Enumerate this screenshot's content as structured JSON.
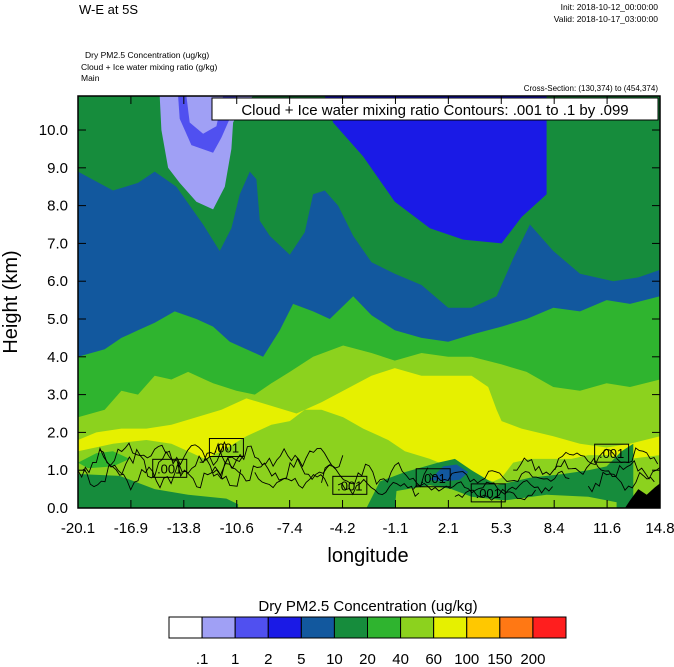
{
  "header": {
    "title": "W-E at 5S",
    "init": "Init: 2018-10-12_00:00:00",
    "valid": "Valid: 2018-10-17_03:00:00",
    "fields": [
      "Dry PM2.5 Concentration   (ug/kg)",
      "Cloud + Ice water mixing ratio   (g/kg)",
      "Main"
    ],
    "cross_section": "Cross-Section: (130,374) to (454,374)"
  },
  "chart_data": {
    "type": "heatmap",
    "title": "W-E at 5S",
    "xlabel": "longitude",
    "ylabel": "Height (km)",
    "x_ticks": [
      "-20.1",
      "-16.9",
      "-13.8",
      "-10.6",
      "-7.4",
      "-4.2",
      "-1.1",
      "2.1",
      "5.3",
      "8.4",
      "11.6",
      "14.8"
    ],
    "y_ticks": [
      "0.0",
      "1.0",
      "2.0",
      "3.0",
      "4.0",
      "5.0",
      "6.0",
      "7.0",
      "8.0",
      "9.0",
      "10.0"
    ],
    "xlim": [
      -20.1,
      14.8
    ],
    "ylim": [
      0.0,
      10.9
    ],
    "contour_label": "Cloud + Ice water mixing ratio Contours: .001 to .1 by .099",
    "contour_levels": [
      0.001,
      0.1
    ],
    "contour_tags": [
      {
        "text": ".001",
        "x": -14.6,
        "y": 1.05
      },
      {
        "text": ".001",
        "x": -11.2,
        "y": 1.6
      },
      {
        "text": ".001",
        "x": -3.8,
        "y": 0.6
      },
      {
        "text": ".001",
        "x": 1.2,
        "y": 0.8
      },
      {
        "text": ".001",
        "x": 4.5,
        "y": 0.4
      },
      {
        "text": ".001",
        "x": 11.9,
        "y": 1.45
      }
    ],
    "colorbar": {
      "title": "Dry PM2.5 Concentration  (ug/kg)",
      "labels": [
        ".1",
        "1",
        "2",
        "5",
        "10",
        "20",
        "40",
        "60",
        "100",
        "150",
        "200"
      ],
      "colors": [
        "#ffffff",
        "#a0a0f5",
        "#5050f0",
        "#1a1ae6",
        "#12589e",
        "#168c3c",
        "#2fb42f",
        "#8cd21e",
        "#e6f000",
        "#ffc800",
        "#ff7814",
        "#ff1e1e"
      ]
    },
    "bands": [
      {
        "color": "#12589e",
        "top": [
          [
            -20.1,
            10.9
          ],
          [
            14.8,
            10.9
          ]
        ]
      },
      {
        "color": "#1a1ae6",
        "top": [
          [
            -20.1,
            10.9
          ],
          [
            14.8,
            10.9
          ]
        ]
      },
      {
        "color": "#168c3c",
        "top": [
          [
            -20.1,
            10.9
          ],
          [
            -5.3,
            10.9
          ],
          [
            -4.8,
            10.2
          ],
          [
            -3.0,
            9.3
          ],
          [
            -1.1,
            8.1
          ],
          [
            1.0,
            7.4
          ],
          [
            3.0,
            7.1
          ],
          [
            5.3,
            7.0
          ],
          [
            6.5,
            7.7
          ],
          [
            8.0,
            8.3
          ],
          [
            8.0,
            10.9
          ],
          [
            14.8,
            10.9
          ]
        ]
      },
      {
        "color": "#12589e",
        "top": [
          [
            -20.1,
            8.9
          ],
          [
            -18.0,
            8.4
          ],
          [
            -16.5,
            8.6
          ],
          [
            -15.5,
            8.9
          ],
          [
            -14.2,
            8.5
          ],
          [
            -12.6,
            7.5
          ],
          [
            -11.6,
            6.8
          ],
          [
            -10.9,
            7.4
          ],
          [
            -10.4,
            8.3
          ],
          [
            -9.8,
            8.9
          ],
          [
            -9.4,
            8.7
          ],
          [
            -9.2,
            7.6
          ],
          [
            -8.6,
            7.2
          ],
          [
            -7.4,
            6.7
          ],
          [
            -6.5,
            7.3
          ],
          [
            -6.0,
            8.3
          ],
          [
            -5.3,
            8.4
          ],
          [
            -4.5,
            8.0
          ],
          [
            -3.6,
            7.2
          ],
          [
            -2.5,
            6.5
          ],
          [
            -1.1,
            6.2
          ],
          [
            0.5,
            5.9
          ],
          [
            2.1,
            5.3
          ],
          [
            3.5,
            5.3
          ],
          [
            5.0,
            5.6
          ],
          [
            6.0,
            6.6
          ],
          [
            7.0,
            7.5
          ],
          [
            8.4,
            6.8
          ],
          [
            10.0,
            6.2
          ],
          [
            12.0,
            6.0
          ],
          [
            13.5,
            6.1
          ],
          [
            14.8,
            6.3
          ]
        ]
      },
      {
        "color": "#2fb42f",
        "top": [
          [
            -20.1,
            4.0
          ],
          [
            -18.5,
            4.2
          ],
          [
            -17.5,
            4.5
          ],
          [
            -16.5,
            4.7
          ],
          [
            -15.5,
            4.9
          ],
          [
            -14.3,
            5.2
          ],
          [
            -13.0,
            5.0
          ],
          [
            -12.0,
            4.8
          ],
          [
            -11.0,
            4.4
          ],
          [
            -10.0,
            4.2
          ],
          [
            -9.0,
            4.0
          ],
          [
            -8.0,
            4.7
          ],
          [
            -7.2,
            5.4
          ],
          [
            -6.0,
            5.2
          ],
          [
            -5.0,
            5.0
          ],
          [
            -3.6,
            5.6
          ],
          [
            -2.5,
            5.1
          ],
          [
            -1.1,
            4.7
          ],
          [
            0.5,
            4.5
          ],
          [
            2.1,
            4.4
          ],
          [
            3.6,
            4.6
          ],
          [
            5.3,
            4.8
          ],
          [
            6.8,
            5.0
          ],
          [
            8.4,
            5.3
          ],
          [
            10.0,
            5.2
          ],
          [
            11.6,
            5.5
          ],
          [
            13.0,
            5.4
          ],
          [
            14.8,
            5.6
          ]
        ]
      },
      {
        "color": "#8cd21e",
        "top": [
          [
            -20.1,
            2.4
          ],
          [
            -18.5,
            2.6
          ],
          [
            -17.5,
            3.1
          ],
          [
            -16.5,
            3.0
          ],
          [
            -15.5,
            3.5
          ],
          [
            -14.5,
            3.4
          ],
          [
            -13.5,
            3.6
          ],
          [
            -12.0,
            3.3
          ],
          [
            -10.6,
            3.1
          ],
          [
            -9.5,
            3.0
          ],
          [
            -8.5,
            3.3
          ],
          [
            -7.4,
            3.6
          ],
          [
            -6.0,
            4.0
          ],
          [
            -4.2,
            4.3
          ],
          [
            -2.5,
            4.1
          ],
          [
            -1.1,
            3.9
          ],
          [
            0.5,
            4.1
          ],
          [
            2.1,
            4.0
          ],
          [
            3.5,
            4.0
          ],
          [
            5.3,
            3.8
          ],
          [
            6.8,
            3.6
          ],
          [
            8.4,
            3.2
          ],
          [
            10.0,
            3.1
          ],
          [
            11.6,
            3.3
          ],
          [
            13.0,
            3.2
          ],
          [
            14.8,
            3.4
          ]
        ]
      },
      {
        "color": "#e6f000",
        "top": [
          [
            -20.1,
            1.8
          ],
          [
            -19.0,
            2.0
          ],
          [
            -17.5,
            2.1
          ],
          [
            -16.0,
            2.1
          ],
          [
            -14.5,
            2.2
          ],
          [
            -13.0,
            2.4
          ],
          [
            -11.5,
            2.6
          ],
          [
            -10.0,
            2.9
          ],
          [
            -8.5,
            2.7
          ],
          [
            -7.0,
            2.5
          ],
          [
            -5.5,
            2.8
          ],
          [
            -4.2,
            3.1
          ],
          [
            -2.5,
            3.5
          ],
          [
            -1.1,
            3.7
          ],
          [
            0.5,
            3.5
          ],
          [
            2.1,
            3.5
          ],
          [
            3.5,
            3.5
          ],
          [
            4.5,
            3.2
          ],
          [
            5.0,
            2.6
          ],
          [
            5.3,
            2.3
          ],
          [
            6.5,
            2.1
          ],
          [
            8.4,
            1.9
          ],
          [
            10.0,
            1.7
          ],
          [
            11.6,
            1.6
          ],
          [
            13.0,
            1.7
          ],
          [
            14.8,
            1.9
          ]
        ]
      },
      {
        "color": "#8cd21e",
        "top": [
          [
            -20.1,
            1.5
          ],
          [
            -18.0,
            1.7
          ],
          [
            -16.0,
            1.8
          ],
          [
            -14.5,
            1.7
          ],
          [
            -13.5,
            1.5
          ],
          [
            -12.5,
            1.3
          ],
          [
            -11.5,
            1.5
          ],
          [
            -10.0,
            1.9
          ],
          [
            -8.5,
            2.2
          ],
          [
            -7.4,
            2.3
          ],
          [
            -6.5,
            2.6
          ],
          [
            -5.5,
            2.6
          ],
          [
            -4.2,
            2.4
          ],
          [
            -3.0,
            2.1
          ],
          [
            -1.5,
            1.8
          ],
          [
            -0.5,
            1.5
          ],
          [
            1.0,
            1.3
          ],
          [
            2.1,
            1.1
          ],
          [
            3.0,
            0.9
          ],
          [
            4.0,
            0.8
          ],
          [
            4.8,
            0.7
          ],
          [
            5.3,
            0.8
          ],
          [
            6.0,
            1.2
          ],
          [
            7.0,
            1.3
          ],
          [
            8.4,
            1.3
          ],
          [
            9.5,
            1.3
          ],
          [
            10.5,
            1.4
          ],
          [
            11.6,
            1.4
          ],
          [
            13.0,
            1.3
          ],
          [
            14.8,
            1.4
          ]
        ]
      }
    ],
    "patches": [
      {
        "color": "#a0a0f5",
        "points": [
          [
            -15.2,
            10.9
          ],
          [
            -15.1,
            10.0
          ],
          [
            -14.7,
            9.0
          ],
          [
            -14.0,
            8.6
          ],
          [
            -13.0,
            8.1
          ],
          [
            -12.0,
            7.9
          ],
          [
            -11.3,
            8.5
          ],
          [
            -10.9,
            9.5
          ],
          [
            -10.8,
            10.2
          ],
          [
            -10.3,
            10.6
          ],
          [
            -9.6,
            10.9
          ]
        ]
      },
      {
        "color": "#5050f0",
        "points": [
          [
            -14.1,
            10.9
          ],
          [
            -14.0,
            10.3
          ],
          [
            -13.3,
            9.6
          ],
          [
            -12.0,
            9.4
          ],
          [
            -11.5,
            9.8
          ],
          [
            -10.9,
            10.4
          ],
          [
            -10.6,
            10.9
          ]
        ]
      },
      {
        "color": "#a0a0f5",
        "points": [
          [
            -13.6,
            10.9
          ],
          [
            -13.4,
            10.2
          ],
          [
            -12.6,
            9.9
          ],
          [
            -11.8,
            10.1
          ],
          [
            -11.4,
            10.9
          ]
        ]
      },
      {
        "color": "#168c3c",
        "points": [
          [
            -20.1,
            0.0
          ],
          [
            -20.1,
            0.9
          ],
          [
            -17.6,
            0.85
          ],
          [
            -15.5,
            0.5
          ],
          [
            -13.5,
            0.35
          ],
          [
            -11.2,
            0.25
          ],
          [
            -10.5,
            0.1
          ],
          [
            -10.5,
            0.0
          ]
        ]
      },
      {
        "color": "#168c3c",
        "points": [
          [
            -2.8,
            0.0
          ],
          [
            -2.0,
            0.7
          ],
          [
            -0.5,
            0.95
          ],
          [
            1.5,
            1.2
          ],
          [
            2.5,
            1.3
          ],
          [
            3.5,
            1.0
          ],
          [
            5.0,
            0.6
          ],
          [
            7.0,
            0.8
          ],
          [
            9.0,
            0.9
          ],
          [
            10.5,
            1.0
          ],
          [
            11.6,
            1.1
          ],
          [
            12.5,
            1.5
          ],
          [
            13.2,
            1.7
          ],
          [
            13.2,
            0.0
          ]
        ]
      },
      {
        "color": "#8cd21e",
        "points": [
          [
            -1.1,
            0.0
          ],
          [
            -1.0,
            0.45
          ],
          [
            1.0,
            0.6
          ],
          [
            2.3,
            0.5
          ],
          [
            3.5,
            0.3
          ],
          [
            5.5,
            0.2
          ],
          [
            8.0,
            0.35
          ],
          [
            10.5,
            0.3
          ],
          [
            12.2,
            0.15
          ],
          [
            12.2,
            0.0
          ]
        ]
      },
      {
        "color": "#12589e",
        "points": [
          [
            1.0,
            0.75
          ],
          [
            1.8,
            1.1
          ],
          [
            2.6,
            1.15
          ],
          [
            3.3,
            0.95
          ],
          [
            2.8,
            0.75
          ],
          [
            1.8,
            0.7
          ]
        ]
      },
      {
        "color": "#2fb42f",
        "points": [
          [
            -20.1,
            1.2
          ],
          [
            -19.0,
            1.45
          ],
          [
            -18.0,
            1.5
          ],
          [
            -17.0,
            1.3
          ],
          [
            -18.0,
            1.1
          ],
          [
            -19.5,
            1.05
          ]
        ]
      },
      {
        "color": "#000000",
        "points": [
          [
            12.7,
            0.0
          ],
          [
            13.0,
            0.2
          ],
          [
            13.5,
            0.5
          ],
          [
            14.0,
            0.35
          ],
          [
            14.5,
            0.55
          ],
          [
            14.8,
            0.65
          ],
          [
            14.8,
            0.0
          ]
        ]
      }
    ]
  }
}
